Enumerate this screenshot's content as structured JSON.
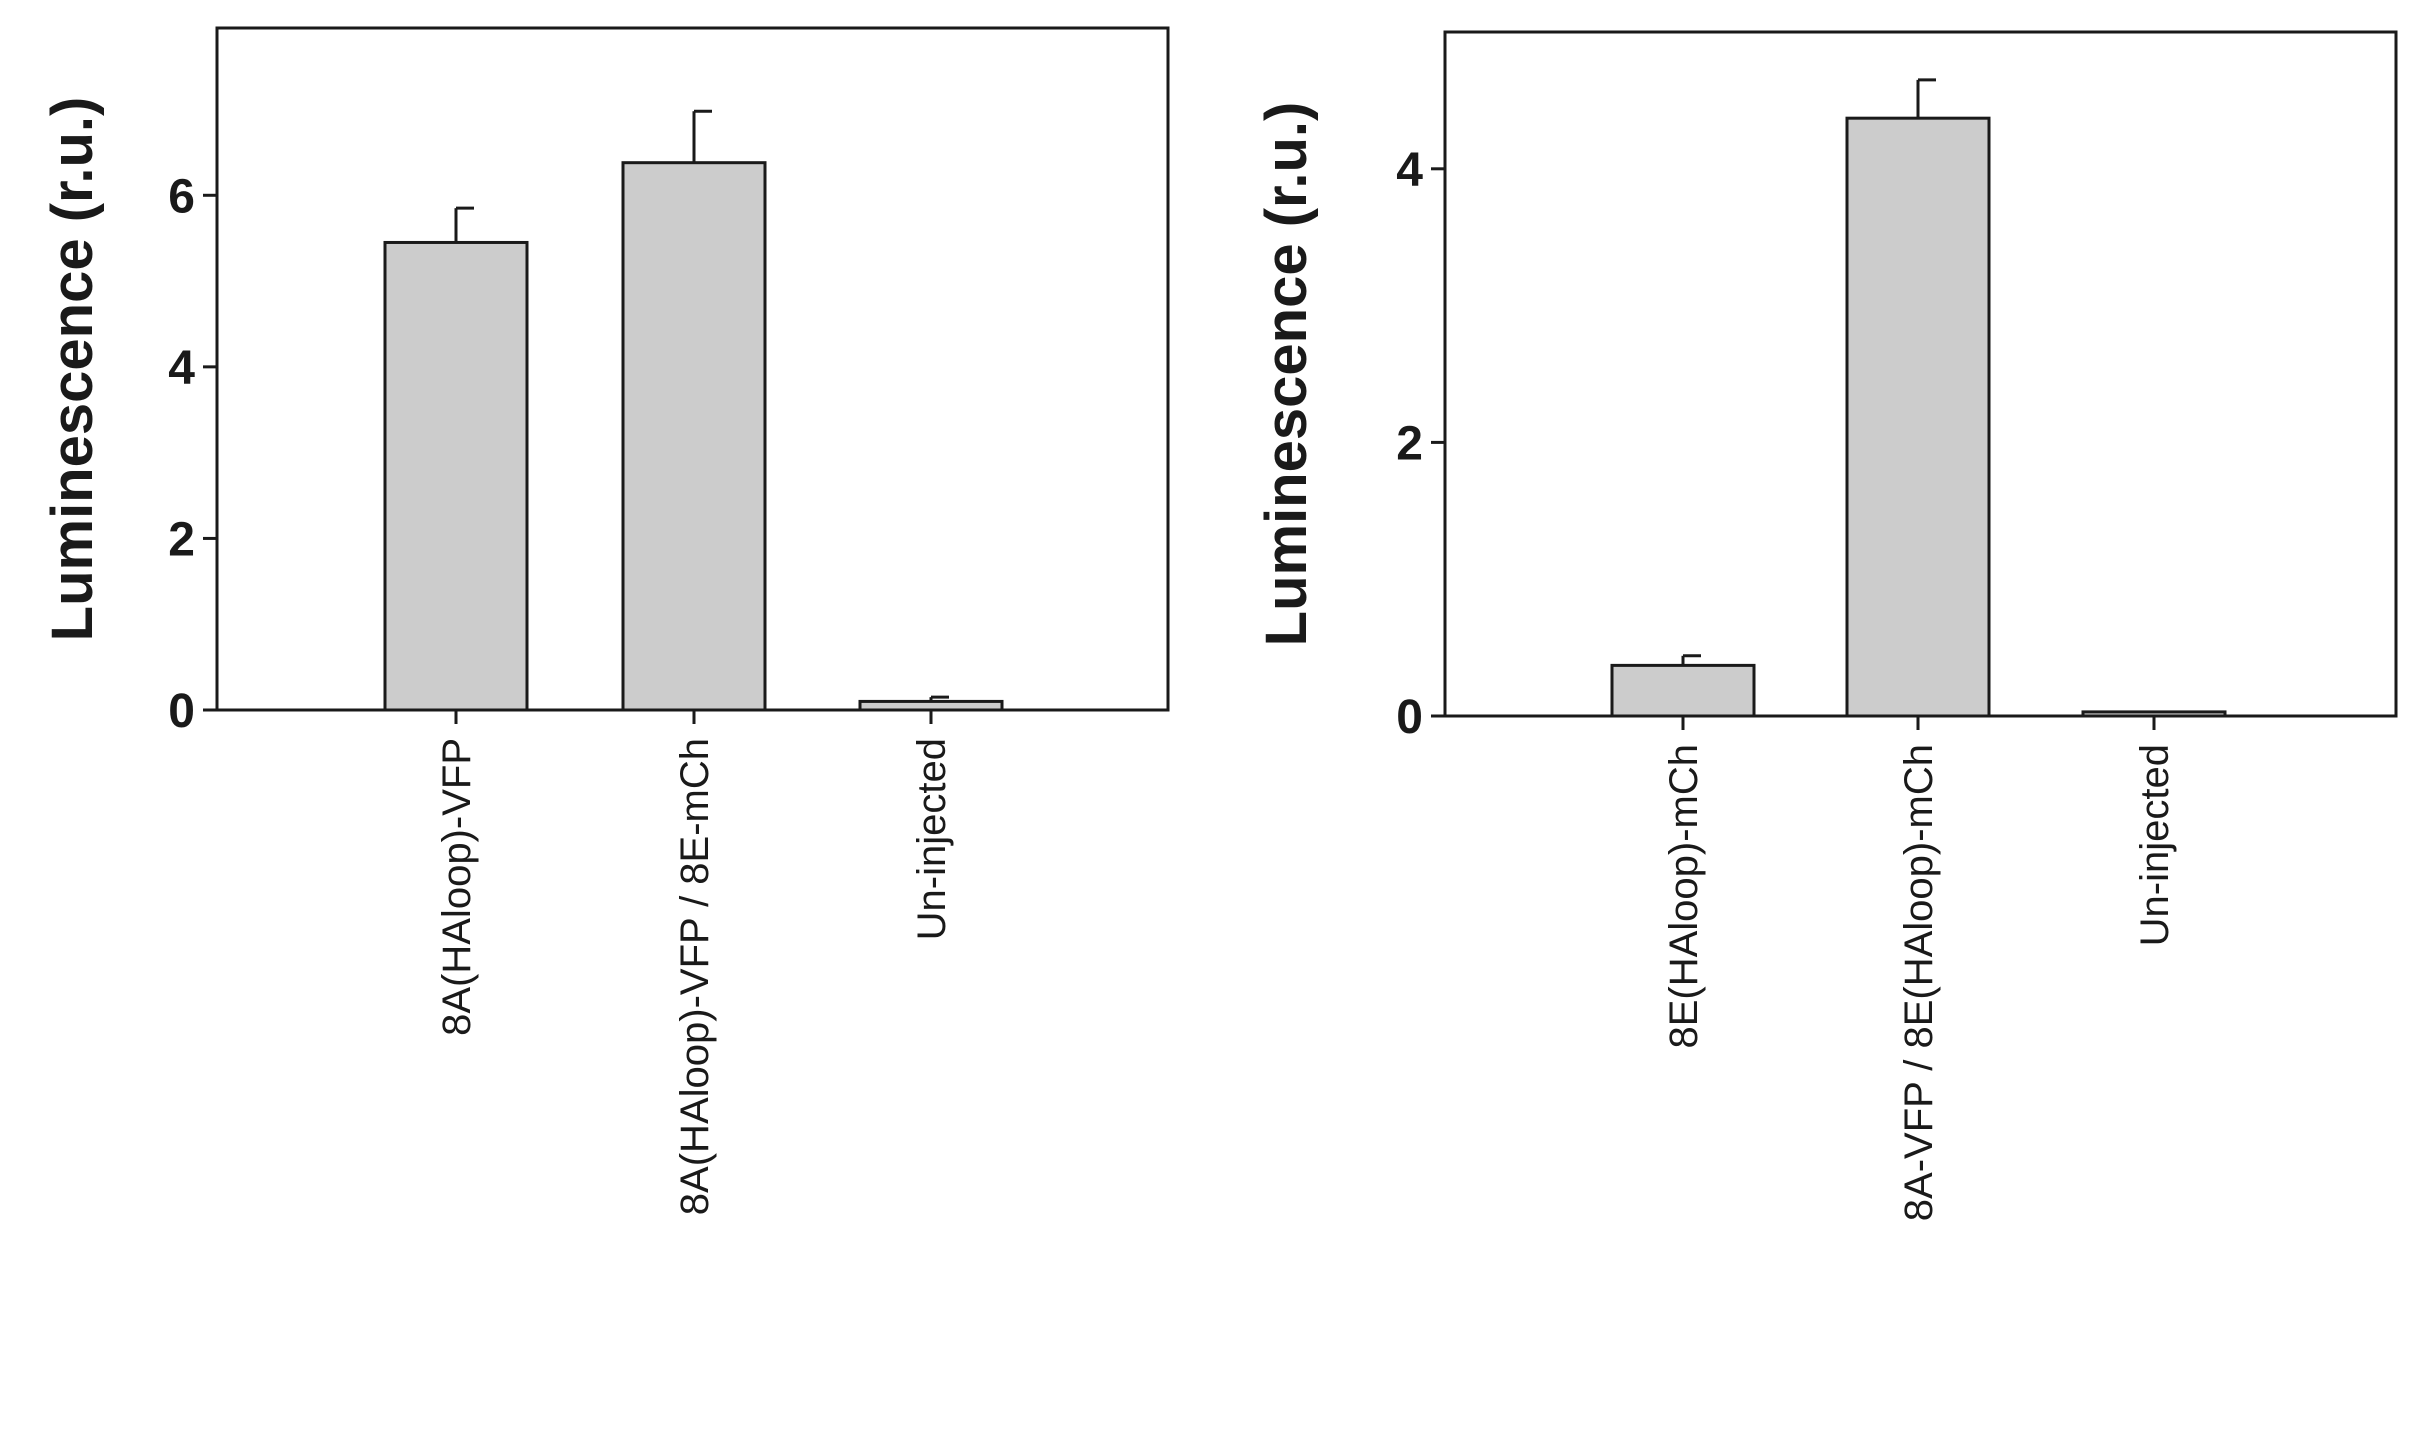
{
  "chart_data": [
    {
      "type": "bar",
      "categories": [
        "8A(HAloop)-VFP",
        "8A(HAloop)-VFP / 8E-mCh",
        "Un-injected"
      ],
      "values": [
        5.45,
        6.38,
        0.1
      ],
      "errors": [
        0.4,
        0.6,
        0.05
      ],
      "ylabel": "Luminescence (r.u.)",
      "xlabel": "",
      "yticks": [
        0,
        2,
        4,
        6
      ],
      "ylim": [
        0,
        7.95
      ],
      "bar_color": "#cccccc",
      "grid": false,
      "legend": "none"
    },
    {
      "type": "bar",
      "categories": [
        "8E(HAloop)-mCh",
        "8A-VFP / 8E(HAloop)-mCh",
        "Un-injected"
      ],
      "values": [
        0.37,
        4.37,
        0.03
      ],
      "errors": [
        0.07,
        0.28,
        0
      ],
      "ylabel": "Luminescence (r.u.)",
      "xlabel": "",
      "yticks": [
        0,
        2,
        4
      ],
      "ylim": [
        0,
        5.0
      ],
      "bar_color": "#cccccc",
      "grid": false,
      "legend": "none"
    }
  ]
}
